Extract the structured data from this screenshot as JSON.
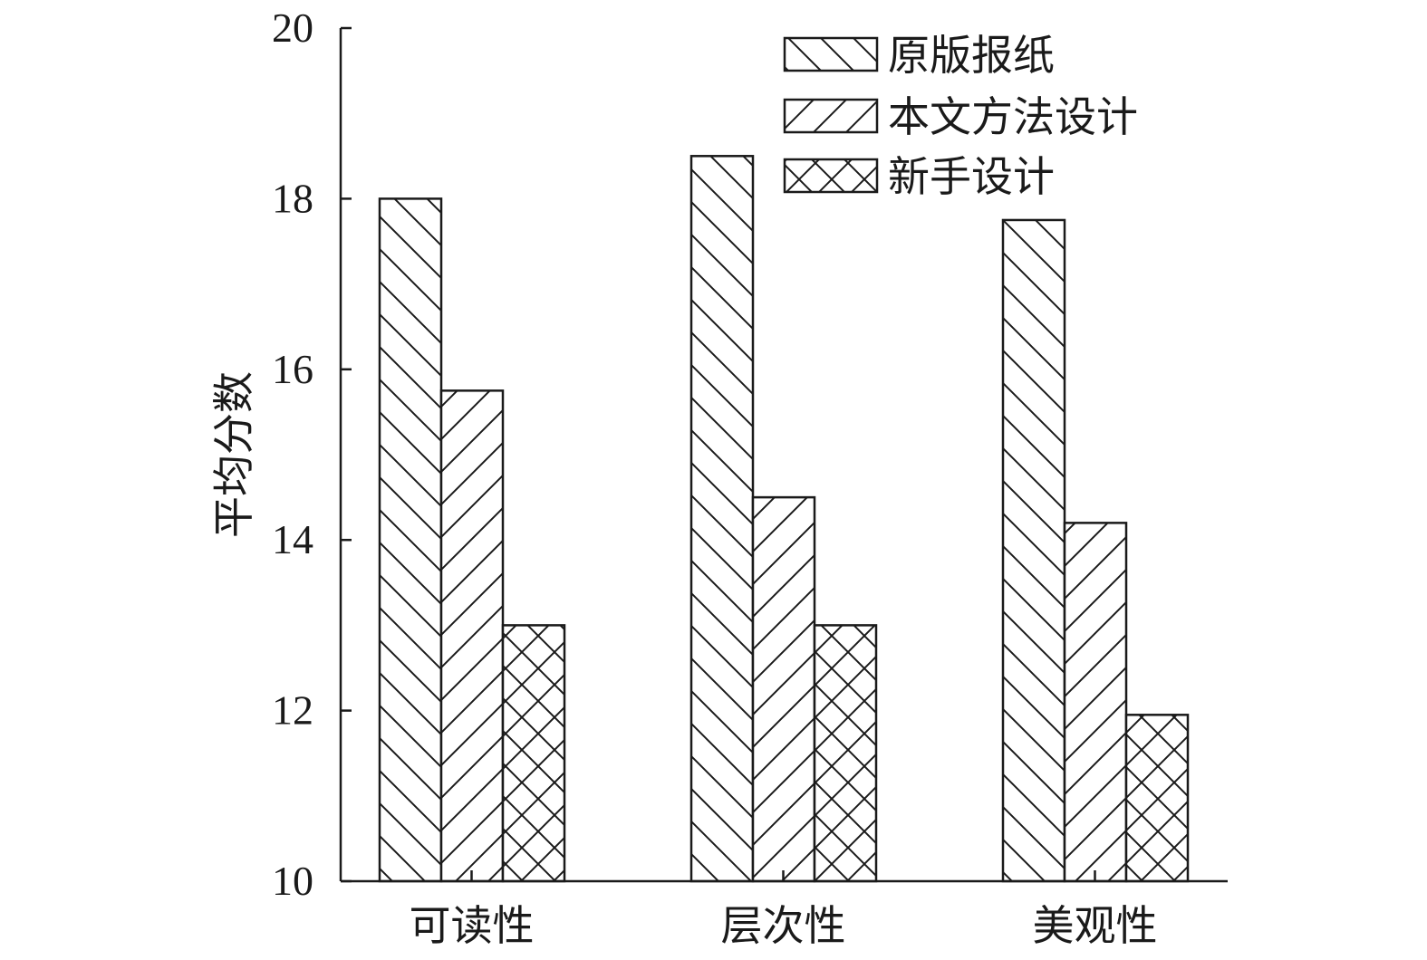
{
  "chart_data": {
    "type": "bar",
    "title": "",
    "xlabel": "",
    "ylabel": "平均分数",
    "ylim": [
      10,
      20
    ],
    "yticks": [
      10,
      12,
      14,
      16,
      18,
      20
    ],
    "grid": false,
    "legend_position": "top-right",
    "categories": [
      "可读性",
      "层次性",
      "美观性"
    ],
    "series": [
      {
        "name": "原版报纸",
        "pattern": "hatch-backslash",
        "values": [
          18.0,
          18.5,
          17.75
        ]
      },
      {
        "name": "本文方法设计",
        "pattern": "hatch-slash",
        "values": [
          15.75,
          14.5,
          14.2
        ]
      },
      {
        "name": "新手设计",
        "pattern": "hatch-cross",
        "values": [
          13.0,
          13.0,
          11.95
        ]
      }
    ],
    "colors": {
      "line": "#1a1a1a",
      "fill": "#ffffff"
    }
  }
}
